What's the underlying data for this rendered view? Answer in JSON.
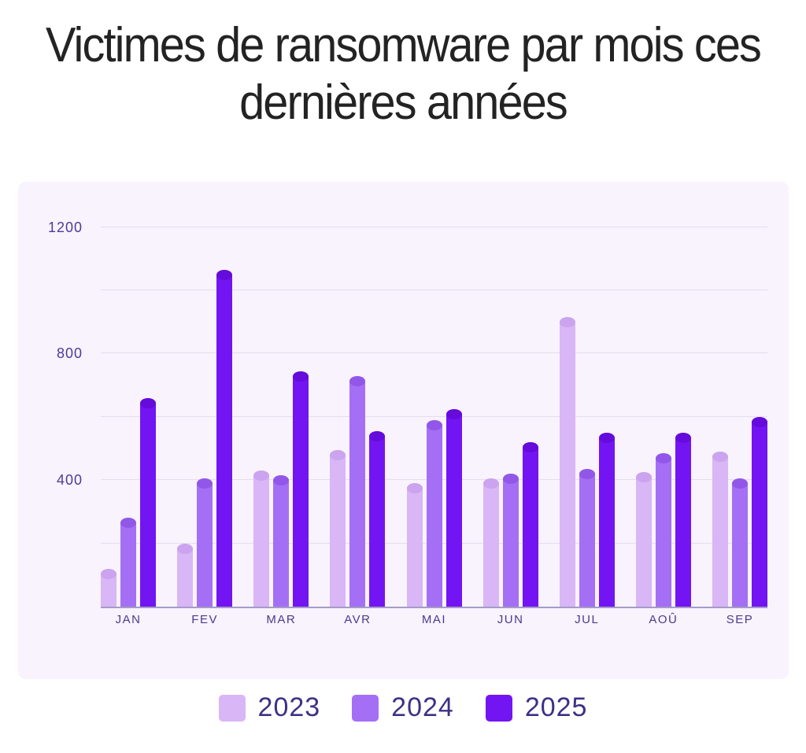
{
  "chart_data": {
    "type": "bar",
    "title": "Victimes de ransomware par mois ces dernières années",
    "categories": [
      "JAN",
      "FEV",
      "MAR",
      "AVR",
      "MAI",
      "JUN",
      "JUL",
      "AOÛ",
      "SEP"
    ],
    "series": [
      {
        "name": "2023",
        "color": "#d9b6f6",
        "cap_color": "#cba3ee",
        "values": [
          120,
          200,
          430,
          495,
          390,
          405,
          915,
          425,
          490
        ]
      },
      {
        "name": "2024",
        "color": "#a56ff5",
        "cap_color": "#9257e8",
        "values": [
          280,
          405,
          415,
          730,
          590,
          420,
          435,
          485,
          405
        ]
      },
      {
        "name": "2025",
        "color": "#7315f2",
        "cap_color": "#650bdb",
        "values": [
          660,
          1065,
          745,
          555,
          625,
          520,
          550,
          550,
          600
        ]
      }
    ],
    "ylim": [
      0,
      1200
    ],
    "yticks": [
      400,
      800,
      1200
    ],
    "gridline_step": 200,
    "grid": true,
    "legend_position": "bottom",
    "xlabel": "",
    "ylabel": ""
  },
  "colors": {
    "page_bg": "#ffffff",
    "panel_bg": "#f8f3fc",
    "grid_line": "#e4ddee",
    "axis_line": "#a49cc6",
    "tick_label": "#4d3d96",
    "legend_label": "#3e3085",
    "title": "#232323"
  }
}
